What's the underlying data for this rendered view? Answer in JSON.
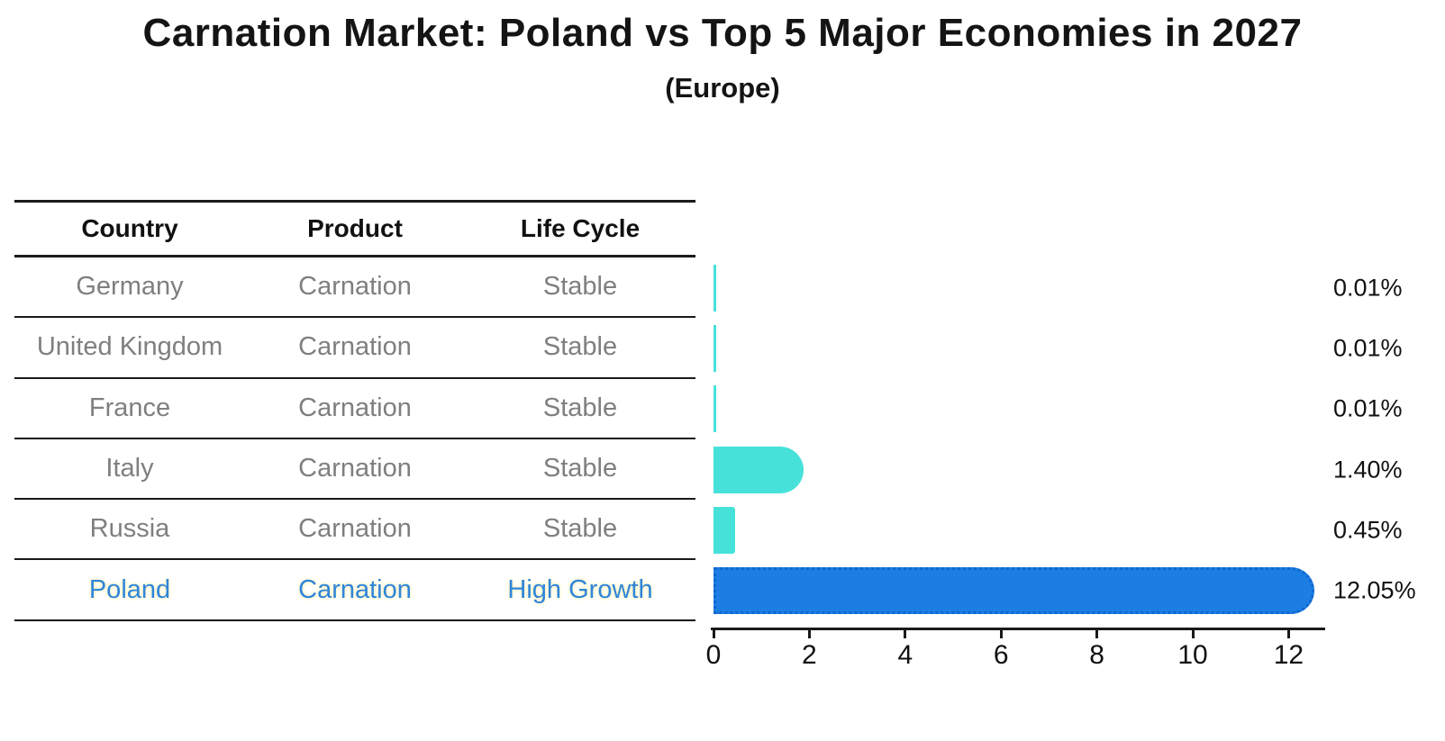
{
  "title": "Carnation Market: Poland vs Top 5 Major Economies in 2027",
  "subtitle": "(Europe)",
  "table": {
    "headers": [
      "Country",
      "Product",
      "Life Cycle"
    ],
    "rows": [
      {
        "country": "Germany",
        "product": "Carnation",
        "life_cycle": "Stable",
        "highlight": false
      },
      {
        "country": "United Kingdom",
        "product": "Carnation",
        "life_cycle": "Stable",
        "highlight": false
      },
      {
        "country": "France",
        "product": "Carnation",
        "life_cycle": "Stable",
        "highlight": false
      },
      {
        "country": "Italy",
        "product": "Carnation",
        "life_cycle": "Stable",
        "highlight": false
      },
      {
        "country": "Russia",
        "product": "Carnation",
        "life_cycle": "Stable",
        "highlight": false
      },
      {
        "country": "Poland",
        "product": "Carnation",
        "life_cycle": "High Growth",
        "highlight": true
      }
    ]
  },
  "chart_data": {
    "type": "bar",
    "orientation": "horizontal",
    "title": "Carnation Market: Poland vs Top 5 Major Economies in 2027",
    "subtitle": "(Europe)",
    "categories": [
      "Germany",
      "United Kingdom",
      "France",
      "Italy",
      "Russia",
      "Poland"
    ],
    "values": [
      0.01,
      0.01,
      0.01,
      1.4,
      0.45,
      12.05
    ],
    "value_labels": [
      "0.01%",
      "0.01%",
      "0.01%",
      "1.40%",
      "0.45%",
      "12.05%"
    ],
    "highlight_category": "Poland",
    "xlabel": "",
    "ylabel": "",
    "xlim": [
      0,
      12.65
    ],
    "xticks": [
      0,
      2,
      4,
      6,
      8,
      10,
      12
    ],
    "grid": false,
    "legend": "none",
    "colors": {
      "stable_bar": "#46E2DA",
      "highlight_bar": "#1C7DE2",
      "highlight_bar_edge": "#0E67D2",
      "highlight_text": "#2F86D9",
      "muted_text": "#7F7F7F",
      "axis_text": "#111111",
      "line": "#1A1A1A"
    }
  }
}
